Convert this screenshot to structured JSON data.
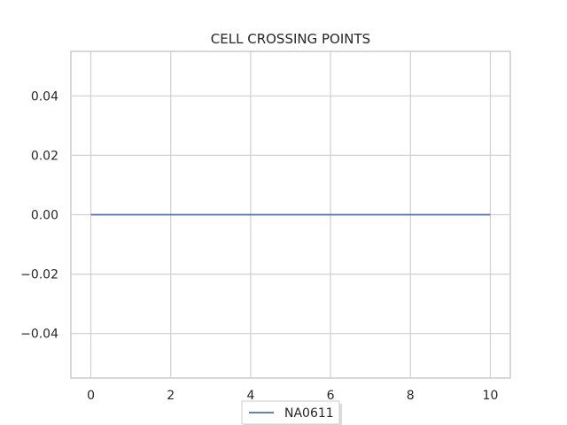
{
  "chart_data": {
    "type": "line",
    "title": "CELL CROSSING POINTS",
    "xlabel": "",
    "ylabel": "",
    "x": [
      0,
      1,
      2,
      3,
      4,
      5,
      6,
      7,
      8,
      9,
      10
    ],
    "series": [
      {
        "name": "NA0611",
        "values": [
          0,
          0,
          0,
          0,
          0,
          0,
          0,
          0,
          0,
          0,
          0
        ],
        "color": "#4c72b0"
      }
    ],
    "xlim": [
      -0.5,
      10.5
    ],
    "ylim": [
      -0.055,
      0.055
    ],
    "x_ticks": [
      0,
      2,
      4,
      6,
      8,
      10
    ],
    "x_tick_labels": [
      "0",
      "2",
      "4",
      "6",
      "8",
      "10"
    ],
    "y_ticks": [
      -0.04,
      -0.02,
      0.0,
      0.02,
      0.04
    ],
    "y_tick_labels": [
      "−0.04",
      "−0.02",
      "0.00",
      "0.02",
      "0.04"
    ],
    "grid": true,
    "legend_position": "lower-center",
    "colors": {
      "grid": "#d0d0d0",
      "frame": "#cccccc",
      "text": "#262626"
    }
  }
}
